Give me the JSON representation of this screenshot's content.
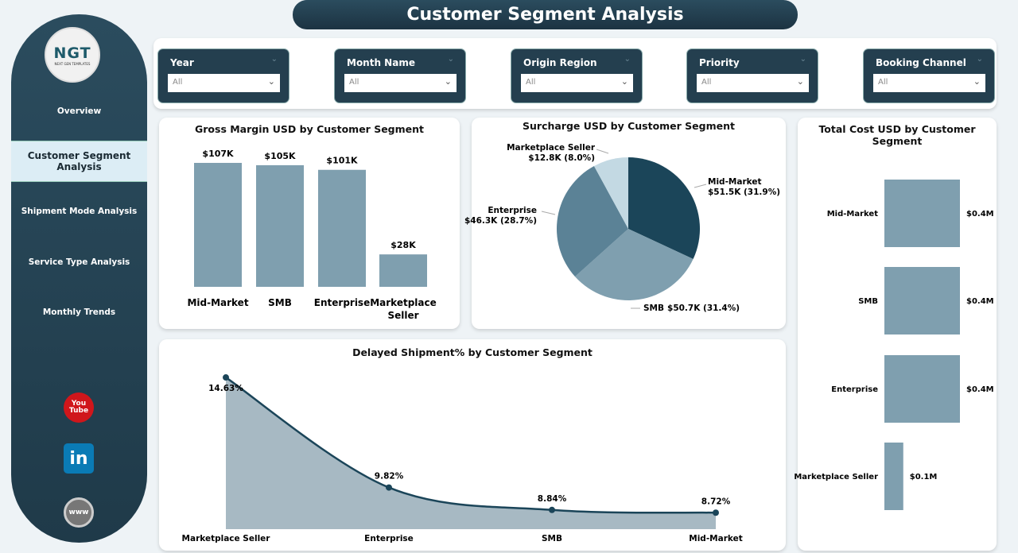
{
  "title": "Customer Segment Analysis",
  "logo": {
    "text": "NGT",
    "subtitle": "NEXT GEN TEMPLATES"
  },
  "sidebar": {
    "items": [
      {
        "label": "Overview"
      },
      {
        "label": "Customer Segment Analysis",
        "active": true
      },
      {
        "label": "Shipment Mode Analysis"
      },
      {
        "label": "Service Type Analysis"
      },
      {
        "label": "Monthly Trends"
      }
    ],
    "social": [
      {
        "icon": "youtube-icon",
        "text": "You Tube",
        "color": "#d0161b"
      },
      {
        "icon": "linkedin-icon",
        "text": "in",
        "color": "#0a7bb5"
      },
      {
        "icon": "globe-icon",
        "text": "www",
        "color": "#777777"
      }
    ]
  },
  "filters": [
    {
      "label": "Year",
      "value": "All"
    },
    {
      "label": "Month Name",
      "value": "All"
    },
    {
      "label": "Origin Region",
      "value": "All"
    },
    {
      "label": "Priority",
      "value": "All"
    },
    {
      "label": "Booking Channel",
      "value": "All"
    }
  ],
  "chart_data": [
    {
      "type": "bar",
      "title": "Gross Margin USD by Customer Segment",
      "categories": [
        "Mid-Market",
        "SMB",
        "Enterprise",
        "Marketplace Seller"
      ],
      "values": [
        107,
        105,
        101,
        28
      ],
      "labels": [
        "$107K",
        "$105K",
        "$101K",
        "$28K"
      ],
      "unit": "K USD",
      "color": "#7f9faf"
    },
    {
      "type": "pie",
      "title": "Surcharge USD by Customer Segment",
      "categories": [
        "Mid-Market",
        "SMB",
        "Enterprise",
        "Marketplace Seller"
      ],
      "values": [
        51.5,
        50.7,
        46.3,
        12.8
      ],
      "labels": [
        "$51.5K (31.9%)",
        "$50.7K (31.4%)",
        "$46.3K (28.7%)",
        "$12.8K (8.0%)"
      ],
      "colors": [
        "#1b4559",
        "#7f9faf",
        "#5b8296",
        "#c3d9e3"
      ]
    },
    {
      "type": "bar",
      "orientation": "horizontal",
      "title": "Total Cost USD by Customer Segment",
      "categories": [
        "Mid-Market",
        "SMB",
        "Enterprise",
        "Marketplace Seller"
      ],
      "values": [
        0.4,
        0.4,
        0.4,
        0.1
      ],
      "labels": [
        "$0.4M",
        "$0.4M",
        "$0.4M",
        "$0.1M"
      ],
      "unit": "M USD",
      "color": "#7f9faf"
    },
    {
      "type": "area",
      "title": "Delayed Shipment% by Customer Segment",
      "categories": [
        "Marketplace Seller",
        "Enterprise",
        "SMB",
        "Mid-Market"
      ],
      "values": [
        14.63,
        9.82,
        8.84,
        8.72
      ],
      "labels": [
        "14.63%",
        "9.82%",
        "8.84%",
        "8.72%"
      ],
      "ylim": [
        8,
        15.5
      ],
      "color": "#1b4559",
      "fill": "#a7b9c3"
    }
  ]
}
